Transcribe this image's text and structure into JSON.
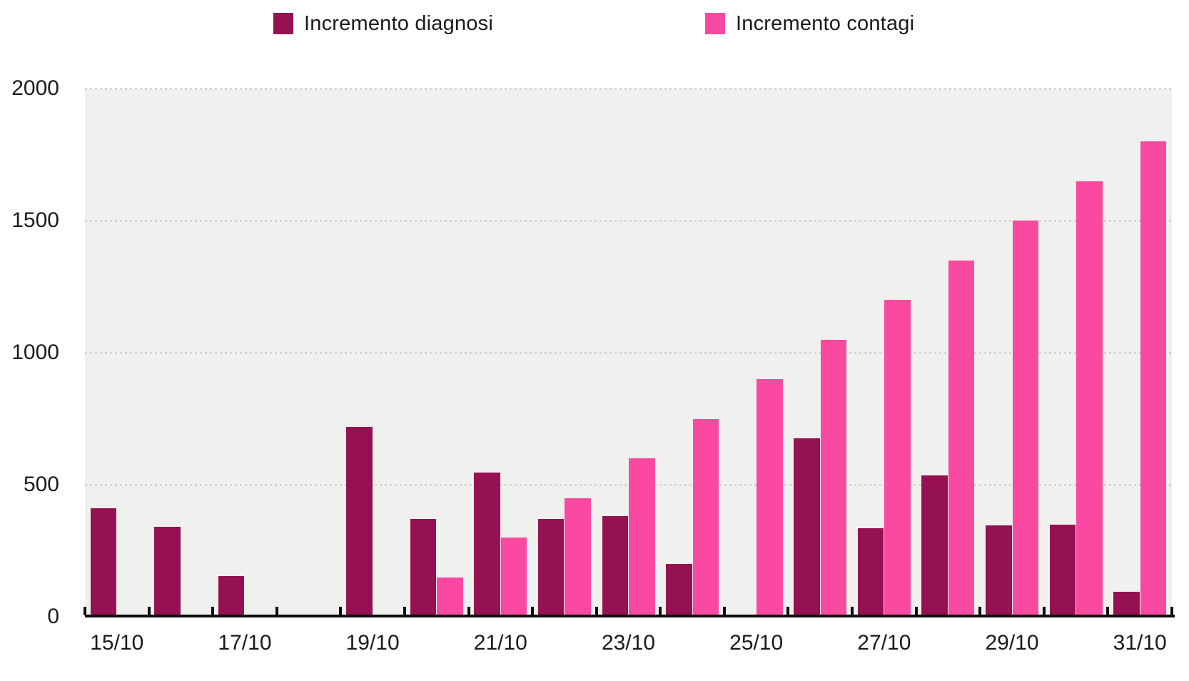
{
  "legend": {
    "items": [
      {
        "label": "Incremento diagnosi",
        "color": "#951152"
      },
      {
        "label": "Incremento contagi",
        "color": "#FA49A0"
      }
    ]
  },
  "chart_data": {
    "type": "bar",
    "title": "",
    "xlabel": "",
    "ylabel": "",
    "categories": [
      "15/10",
      "16/10",
      "17/10",
      "18/10",
      "19/10",
      "20/10",
      "21/10",
      "22/10",
      "23/10",
      "24/10",
      "25/10",
      "26/10",
      "27/10",
      "28/10",
      "29/10",
      "30/10",
      "31/10"
    ],
    "x_axis_labeled_categories": [
      "15/10",
      "17/10",
      "19/10",
      "21/10",
      "23/10",
      "25/10",
      "27/10",
      "29/10",
      "31/10"
    ],
    "series": [
      {
        "name": "Incremento diagnosi",
        "color": "#951152",
        "values": [
          410,
          340,
          155,
          0,
          720,
          370,
          545,
          370,
          380,
          200,
          0,
          675,
          335,
          535,
          345,
          350,
          95
        ]
      },
      {
        "name": "Incremento contagi",
        "color": "#FA49A0",
        "values": [
          0,
          0,
          0,
          0,
          0,
          150,
          300,
          450,
          600,
          750,
          900,
          1050,
          1200,
          1350,
          1500,
          1650,
          1800
        ]
      }
    ],
    "ylim": [
      0,
      2000
    ],
    "y_ticks": [
      0,
      500,
      1000,
      1500,
      2000
    ],
    "grid": "horizontal-dotted",
    "legend_position": "top",
    "plot_background": "#F0F0EF",
    "gridline_color": "#D6D5D3",
    "axis_color": "#0d0d0d",
    "text_color": "#1a1a1a"
  }
}
